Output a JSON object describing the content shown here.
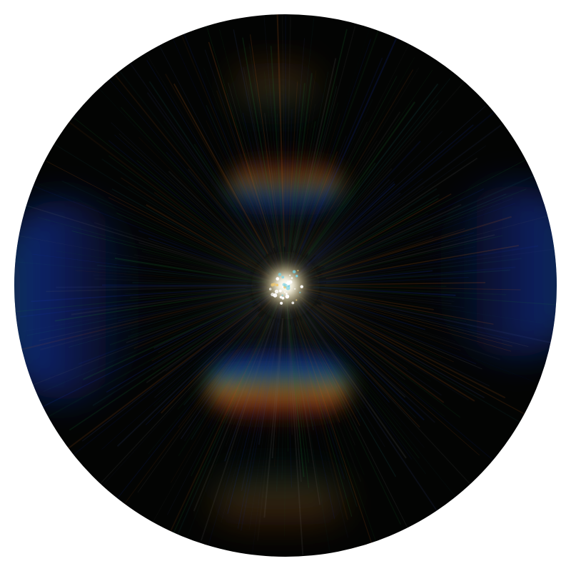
{
  "image": {
    "subject": "diffraction-flare",
    "background_color": "#ffffff",
    "disc_color": "#030403",
    "core_color": "#ffffff",
    "palette": {
      "blue": "#1a3cc8",
      "green": "#1f8a3a",
      "orange": "#d2691e",
      "red": "#b02a1a",
      "teal": "#1c6a6a"
    }
  }
}
